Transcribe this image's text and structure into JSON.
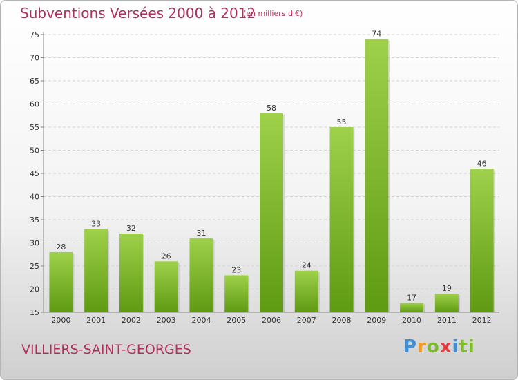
{
  "header": {
    "title": "Subventions Versées 2000 à 2012",
    "subtitle": "(en milliers d'€)"
  },
  "footer": {
    "commune": "VILLIERS-SAINT-GEORGES",
    "logo_letters": [
      "P",
      "r",
      "o",
      "x",
      "i",
      "ti"
    ]
  },
  "colors": {
    "bar_light": "#9fd14a",
    "bar_dark": "#5e9a12",
    "title": "#b0305a"
  },
  "chart_data": {
    "type": "bar",
    "title": "Subventions Versées 2000 à 2012",
    "subtitle": "(en milliers d'€)",
    "xlabel": "",
    "ylabel": "",
    "categories": [
      "2000",
      "2001",
      "2002",
      "2003",
      "2004",
      "2005",
      "2006",
      "2007",
      "2008",
      "2009",
      "2010",
      "2011",
      "2012"
    ],
    "values": [
      28,
      33,
      32,
      26,
      31,
      23,
      58,
      24,
      55,
      74,
      17,
      19,
      46
    ],
    "ylim": [
      15,
      75
    ],
    "yticks": [
      15,
      20,
      25,
      30,
      35,
      40,
      45,
      50,
      55,
      60,
      65,
      70,
      75
    ],
    "grid": true
  }
}
